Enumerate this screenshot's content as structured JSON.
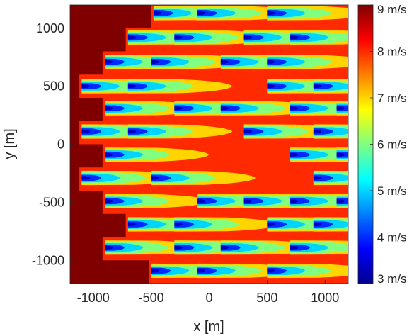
{
  "chart_data": {
    "type": "heatmap",
    "title": "",
    "xlabel": "x [m]",
    "ylabel": "y [m]",
    "xlim": [
      -1200,
      1200
    ],
    "ylim": [
      -1200,
      1200
    ],
    "x_ticks": [
      -1000,
      -500,
      0,
      500,
      1000
    ],
    "x_tick_labels": [
      "-1000",
      "-500",
      "0",
      "500",
      "1000"
    ],
    "y_ticks": [
      -1000,
      -500,
      0,
      500,
      1000
    ],
    "y_tick_labels": [
      "-1000",
      "-500",
      "0",
      "500",
      "1000"
    ],
    "colorbar": {
      "min": 3,
      "max": 9,
      "unit": "m/s",
      "ticks": [
        3,
        4,
        5,
        6,
        7,
        8,
        9
      ],
      "tick_labels": [
        "3 m/s",
        "4 m/s",
        "5 m/s",
        "6 m/s",
        "7 m/s",
        "8 m/s",
        "9 m/s"
      ],
      "colormap": "jet"
    },
    "free_stream_speed": 9,
    "background_wake_speed": 8,
    "turbines": [
      {
        "x": -480,
        "y": 1130
      },
      {
        "x": -100,
        "y": 1130
      },
      {
        "x": 500,
        "y": 1130
      },
      {
        "x": -700,
        "y": 920
      },
      {
        "x": -300,
        "y": 920
      },
      {
        "x": 300,
        "y": 920
      },
      {
        "x": 700,
        "y": 920
      },
      {
        "x": -900,
        "y": 710
      },
      {
        "x": -500,
        "y": 710
      },
      {
        "x": 100,
        "y": 710
      },
      {
        "x": 500,
        "y": 710
      },
      {
        "x": -1100,
        "y": 500
      },
      {
        "x": -700,
        "y": 500
      },
      {
        "x": 500,
        "y": 500
      },
      {
        "x": 900,
        "y": 500
      },
      {
        "x": -900,
        "y": 310
      },
      {
        "x": -300,
        "y": 310
      },
      {
        "x": 100,
        "y": 310
      },
      {
        "x": 700,
        "y": 310
      },
      {
        "x": 1100,
        "y": 310
      },
      {
        "x": -1100,
        "y": 110
      },
      {
        "x": -700,
        "y": 110
      },
      {
        "x": 300,
        "y": 110
      },
      {
        "x": 900,
        "y": 110
      },
      {
        "x": -900,
        "y": -90
      },
      {
        "x": 700,
        "y": -90
      },
      {
        "x": 1100,
        "y": -90
      },
      {
        "x": -1100,
        "y": -290
      },
      {
        "x": -500,
        "y": -290
      },
      {
        "x": 900,
        "y": -290
      },
      {
        "x": -900,
        "y": -490
      },
      {
        "x": -100,
        "y": -490
      },
      {
        "x": 300,
        "y": -490
      },
      {
        "x": 700,
        "y": -490
      },
      {
        "x": 1100,
        "y": -490
      },
      {
        "x": -700,
        "y": -690
      },
      {
        "x": -300,
        "y": -690
      },
      {
        "x": 500,
        "y": -690
      },
      {
        "x": 900,
        "y": -690
      },
      {
        "x": -900,
        "y": -890
      },
      {
        "x": -300,
        "y": -890
      },
      {
        "x": 100,
        "y": -890
      },
      {
        "x": 700,
        "y": -890
      },
      {
        "x": -500,
        "y": -1090
      },
      {
        "x": -100,
        "y": -1090
      },
      {
        "x": 500,
        "y": -1090
      }
    ]
  }
}
